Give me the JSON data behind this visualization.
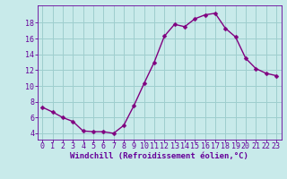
{
  "x": [
    0,
    1,
    2,
    3,
    4,
    5,
    6,
    7,
    8,
    9,
    10,
    11,
    12,
    13,
    14,
    15,
    16,
    17,
    18,
    19,
    20,
    21,
    22,
    23
  ],
  "y": [
    7.3,
    6.7,
    6.0,
    5.5,
    4.3,
    4.2,
    4.2,
    4.0,
    5.0,
    7.5,
    10.3,
    13.0,
    16.3,
    17.8,
    17.5,
    18.5,
    19.0,
    19.2,
    17.3,
    16.2,
    13.5,
    12.2,
    11.6,
    11.3
  ],
  "line_color": "#800080",
  "marker": "D",
  "marker_size": 2.5,
  "line_width": 1.0,
  "bg_color": "#c8eaea",
  "grid_color": "#9ecece",
  "xlabel": "Windchill (Refroidissement éolien,°C)",
  "xlabel_color": "#660099",
  "xlabel_fontsize": 6.5,
  "tick_color": "#660099",
  "tick_fontsize": 6.0,
  "xlim": [
    -0.5,
    23.5
  ],
  "ylim": [
    3.2,
    20.2
  ],
  "yticks": [
    4,
    6,
    8,
    10,
    12,
    14,
    16,
    18
  ],
  "xticks": [
    0,
    1,
    2,
    3,
    4,
    5,
    6,
    7,
    8,
    9,
    10,
    11,
    12,
    13,
    14,
    15,
    16,
    17,
    18,
    19,
    20,
    21,
    22,
    23
  ]
}
